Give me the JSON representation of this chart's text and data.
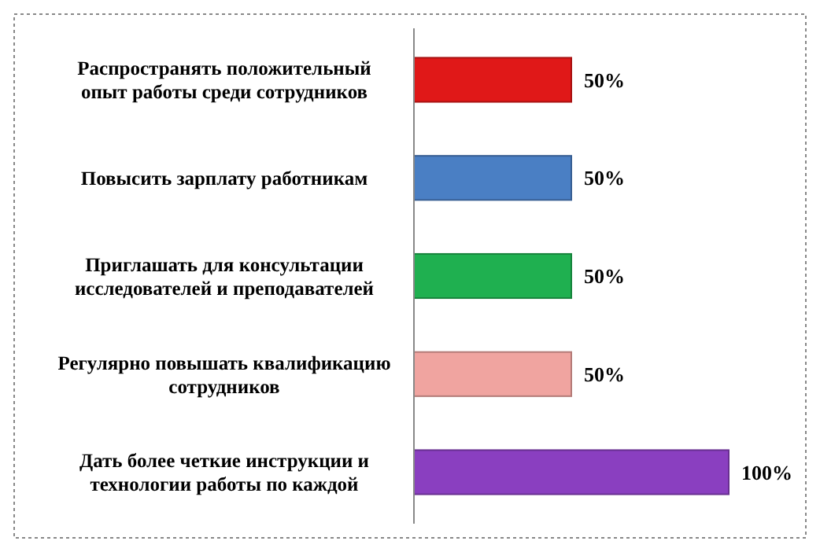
{
  "chart_data": {
    "type": "bar",
    "orientation": "horizontal",
    "categories": [
      "Распространять положительный опыт работы среди сотрудников",
      "Повысить зарплату работникам",
      "Приглашать для консультации исследователей и преподавателей",
      "Регулярно повышать квалификацию сотрудников",
      "Дать более четкие инструкции и технологии работы по каждой"
    ],
    "values": [
      50,
      50,
      50,
      50,
      100
    ],
    "colors": [
      "#e01818",
      "#4a7fc4",
      "#1fb050",
      "#f0a4a0",
      "#8a3fc0"
    ],
    "value_labels": [
      "50%",
      "50%",
      "50%",
      "50%",
      "100%"
    ],
    "xlim": [
      0,
      100
    ],
    "tick_labels": "y"
  }
}
